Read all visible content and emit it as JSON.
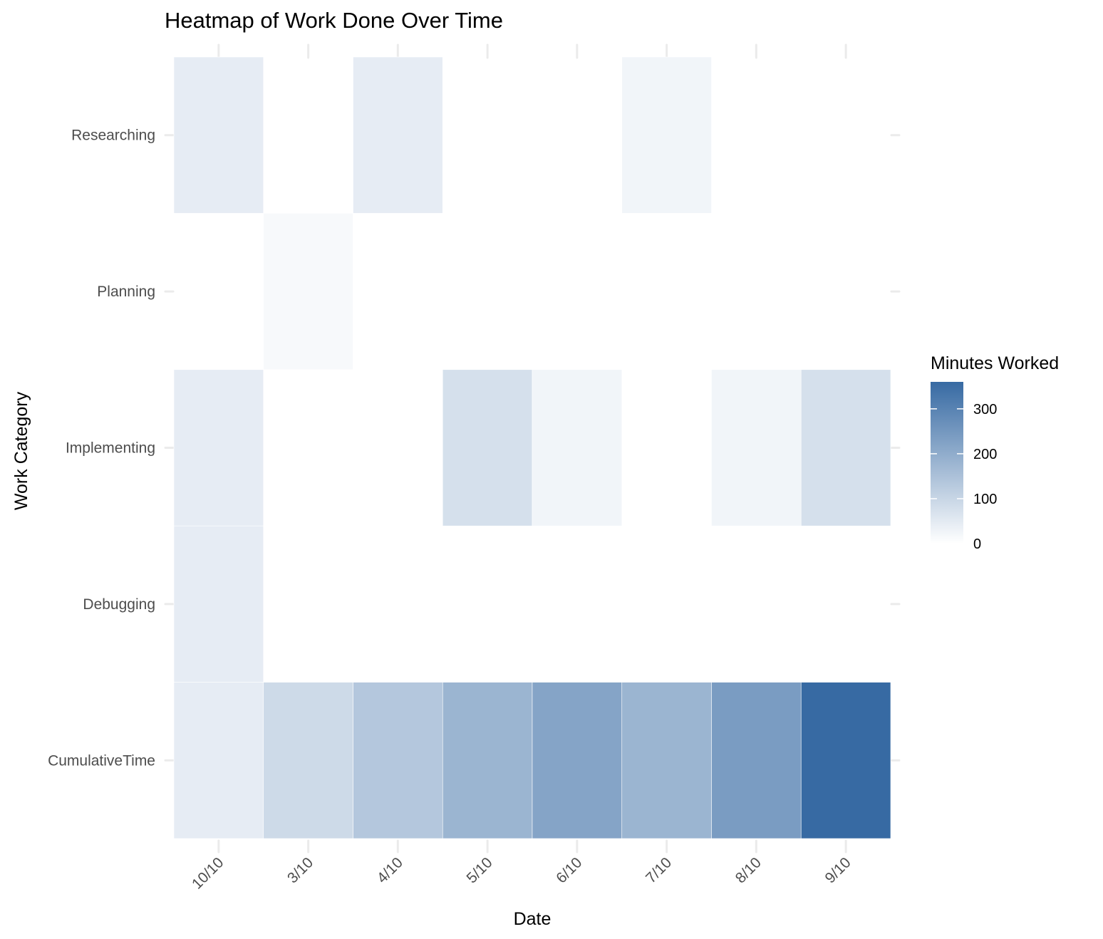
{
  "chart_data": {
    "type": "heatmap",
    "title": "Heatmap of Work Done Over Time",
    "xlabel": "Date",
    "ylabel": "Work Category",
    "x_categories": [
      "10/10",
      "3/10",
      "4/10",
      "5/10",
      "6/10",
      "7/10",
      "8/10",
      "9/10"
    ],
    "y_categories": [
      "Researching",
      "Planning",
      "Implementing",
      "Debugging",
      "CumulativeTime"
    ],
    "values": [
      [
        45,
        0,
        45,
        0,
        0,
        25,
        0,
        0
      ],
      [
        0,
        15,
        0,
        0,
        0,
        0,
        0,
        0
      ],
      [
        45,
        0,
        0,
        75,
        25,
        0,
        25,
        75
      ],
      [
        45,
        0,
        0,
        0,
        0,
        0,
        0,
        0
      ],
      [
        45,
        90,
        135,
        180,
        220,
        180,
        240,
        360
      ]
    ],
    "legend": {
      "title": "Minutes Worked",
      "ticks": [
        0,
        100,
        200,
        300
      ],
      "range": [
        0,
        360
      ],
      "low_color": "#ffffff",
      "high_color": "#376aa3",
      "placement": "right"
    },
    "grid": true,
    "x_tick_rotation": "45"
  }
}
